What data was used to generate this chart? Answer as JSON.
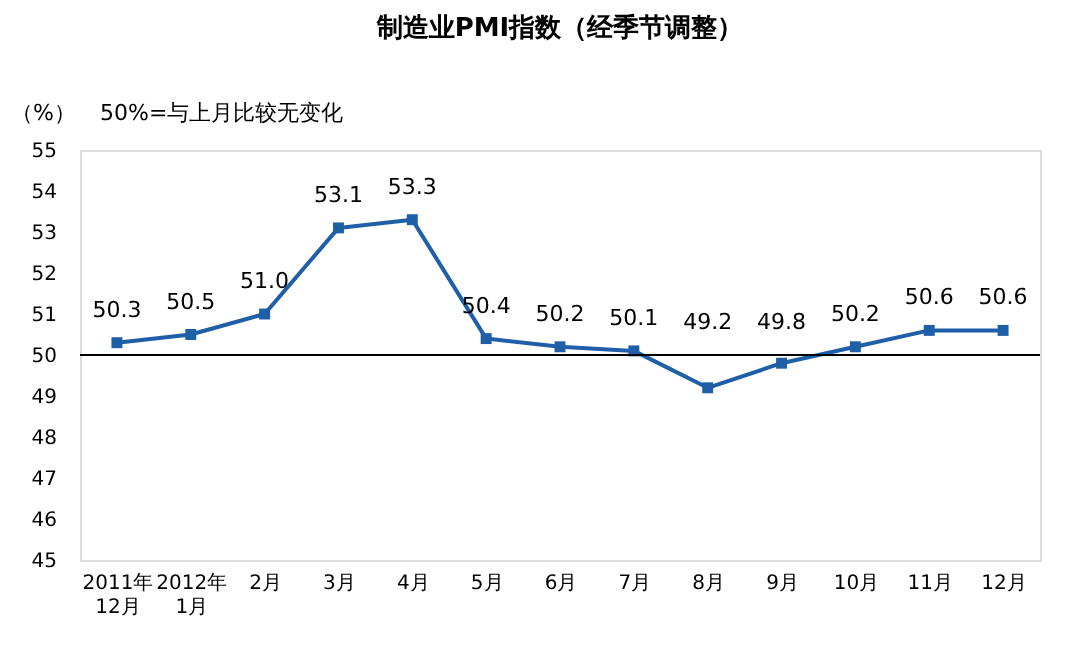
{
  "chart_data": {
    "type": "line",
    "title": "制造业PMI指数（经季节调整）",
    "ylabel": "（%）",
    "annotations": [
      "50%=与上月比较无变化"
    ],
    "categories": [
      "2011年\n12月",
      "2012年\n1月",
      "2月",
      "3月",
      "4月",
      "5月",
      "6月",
      "7月",
      "8月",
      "9月",
      "10月",
      "11月",
      "12月"
    ],
    "series": [
      {
        "color": "#1f5fa8",
        "values": [
          50.3,
          50.5,
          51.0,
          53.1,
          53.3,
          50.4,
          50.2,
          50.1,
          49.2,
          49.8,
          50.2,
          50.6,
          50.6
        ]
      }
    ],
    "value_labels": [
      "50.3",
      "50.5",
      "51.0",
      "53.1",
      "53.3",
      "50.4",
      "50.2",
      "50.1",
      "49.2",
      "49.8",
      "50.2",
      "50.6",
      "50.6"
    ],
    "ylim": [
      45,
      55
    ],
    "yticks": [
      45,
      46,
      47,
      48,
      49,
      50,
      51,
      52,
      53,
      54,
      55
    ],
    "ref_lines": [
      {
        "axis": "y",
        "value": 50,
        "color": "#000000"
      }
    ],
    "marker": "square",
    "line_style": "solid",
    "grid": false
  }
}
